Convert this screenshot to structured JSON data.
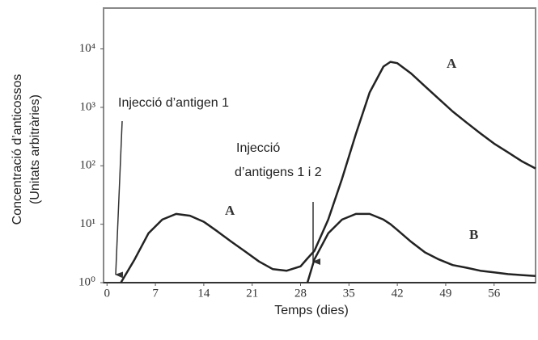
{
  "chart_data": {
    "type": "line",
    "xlabel": "Temps (dies)",
    "ylabel_lines": [
      "Concentració d’anticossos",
      "(Unitats arbitràries)"
    ],
    "annotations": [
      "Injecció d’antigen 1",
      "Injecció",
      "d’antigens 1 i 2"
    ],
    "x": [
      2,
      4,
      6,
      8,
      10,
      12,
      14,
      16,
      18,
      20,
      22,
      24,
      26,
      28,
      29,
      30,
      32,
      34,
      36,
      38,
      40,
      41,
      42,
      44,
      46,
      48,
      50,
      52,
      54,
      56,
      58,
      60,
      62
    ],
    "series": [
      {
        "name": "A",
        "color": "#222222",
        "values": [
          1,
          2.5,
          7,
          12,
          15,
          14,
          11,
          7.5,
          5,
          3.4,
          2.3,
          1.7,
          1.6,
          1.9,
          2.6,
          3.5,
          12,
          60,
          350,
          1800,
          5000,
          6000,
          5700,
          3800,
          2300,
          1400,
          850,
          550,
          360,
          240,
          170,
          120,
          90
        ]
      },
      {
        "name": "B",
        "color": "#222222",
        "values": [
          null,
          null,
          null,
          null,
          null,
          null,
          null,
          null,
          null,
          null,
          null,
          null,
          null,
          null,
          1,
          2.5,
          7,
          12,
          15,
          15,
          12,
          10,
          8,
          5,
          3.3,
          2.5,
          2,
          1.8,
          1.6,
          1.5,
          1.4,
          1.35,
          1.3
        ]
      }
    ],
    "xlim": [
      -0.5,
      62
    ],
    "xticks": [
      0,
      7,
      14,
      21,
      28,
      35,
      42,
      49,
      56
    ],
    "ylim": [
      1,
      50000
    ],
    "log_y": true,
    "yticks": [
      {
        "value": 1,
        "label": "10⁰"
      },
      {
        "value": 10,
        "label": "10¹"
      },
      {
        "value": 100,
        "label": "10²"
      },
      {
        "value": 1000,
        "label": "10³"
      },
      {
        "value": 10000,
        "label": "10⁴"
      }
    ]
  }
}
